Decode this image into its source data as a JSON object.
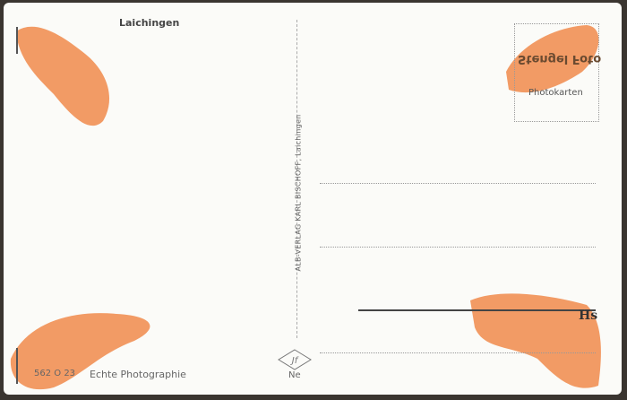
{
  "card": {
    "place_title": "Laichingen",
    "publisher": "ALB-VERLAG KARL BISCHOFF, Laichingen",
    "stamp_box": {
      "logo_text": "Stengel Foto",
      "label": "Photokarten"
    },
    "catalog_number": "562 O 23",
    "photo_type": "Echte Photographie",
    "trademark_label": "Ne",
    "address_mark": "Hs",
    "colors": {
      "card": "#fbfbf8",
      "stain": "#f08a4b",
      "border": "#3a3530"
    }
  }
}
